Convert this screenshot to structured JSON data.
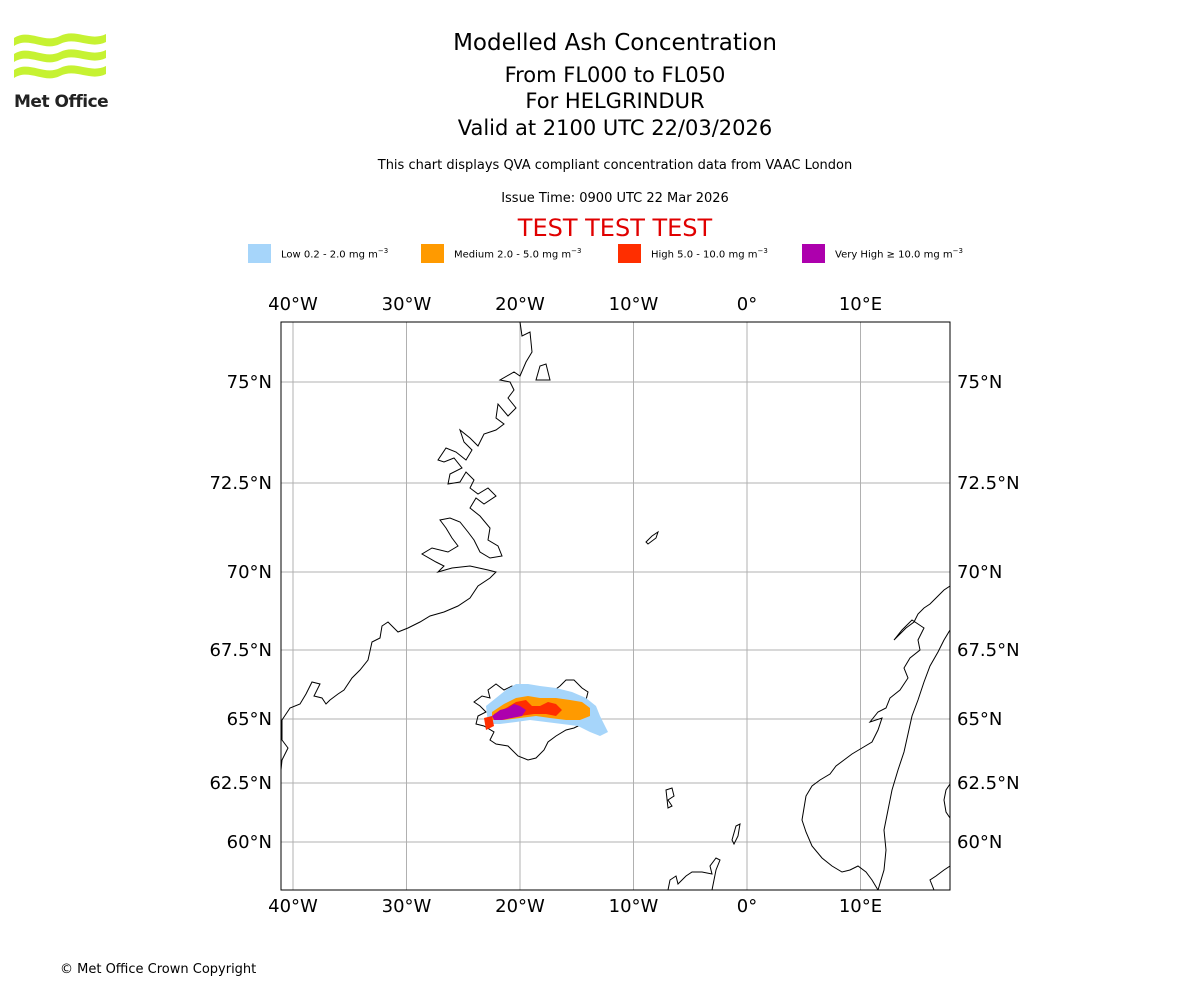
{
  "logo": {
    "text": "Met Office"
  },
  "titles": {
    "line1": "Modelled Ash Concentration",
    "line2": "From FL000 to FL050",
    "line3": "For HELGRINDUR",
    "line4": "Valid at 2100 UTC 22/03/2026"
  },
  "subtitle": "This chart displays QVA compliant concentration data from VAAC London",
  "issue_time": "Issue Time: 0900 UTC 22 Mar 2026",
  "test_banner": "TEST TEST TEST",
  "legend": [
    {
      "label": "Low 0.2 - 2.0 mg m",
      "color": "#a6d5fa"
    },
    {
      "label": "Medium 2.0 - 5.0 mg m",
      "color": "#ff9a00"
    },
    {
      "label": "High 5.0 - 10.0 mg m",
      "color": "#ff2e00"
    },
    {
      "label": "Very High ≥ 10.0 mg m",
      "color": "#ad00ad"
    }
  ],
  "legend_unit_exponent": "−3",
  "axes": {
    "lon_labels": [
      "40°W",
      "30°W",
      "20°W",
      "10°W",
      "0°",
      "10°E"
    ],
    "lat_labels": [
      "75°N",
      "72.5°N",
      "70°N",
      "67.5°N",
      "65°N",
      "62.5°N",
      "60°N"
    ],
    "lon_values": [
      -40,
      -30,
      -20,
      -10,
      0,
      10
    ],
    "lat_values": [
      75,
      72.5,
      70,
      67.5,
      65,
      62.5,
      60
    ]
  },
  "copyright": "© Met Office Crown Copyright"
}
